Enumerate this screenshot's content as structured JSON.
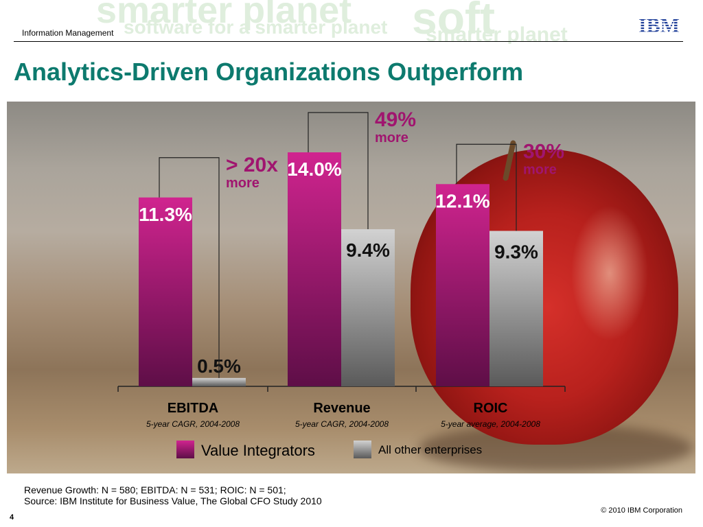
{
  "header": {
    "label": "Information Management",
    "watermark": [
      "smarter planet",
      "software for a smarter planet",
      "soft",
      "smarter planet"
    ]
  },
  "logo": {
    "text": "IBM",
    "color": "#1f3f99"
  },
  "title": "Analytics-Driven Organizations Outperform",
  "chart_data": {
    "type": "bar",
    "categories": [
      "EBITDA",
      "Revenue",
      "ROIC"
    ],
    "category_subtitles": [
      "5-year CAGR, 2004-2008",
      "5-year CAGR, 2004-2008",
      "5-year average, 2004-2008"
    ],
    "series": [
      {
        "name": "Value Integrators",
        "values": [
          11.3,
          14.0,
          12.1
        ],
        "labels": [
          "11.3%",
          "14.0%",
          "12.1%"
        ],
        "color": "#c0288f"
      },
      {
        "name": "All other enterprises",
        "values": [
          0.5,
          9.4,
          9.3
        ],
        "labels": [
          "0.5%",
          "9.4%",
          "9.3%"
        ],
        "color": "#a8a8a8"
      }
    ],
    "comparisons": [
      {
        "big": "> 20x",
        "small": "more"
      },
      {
        "big": "49%",
        "small": "more"
      },
      {
        "big": "30%",
        "small": "more"
      }
    ],
    "ylim": [
      0,
      14.0
    ],
    "xlabel": "",
    "ylabel": "",
    "grid": false,
    "legend_position": "bottom"
  },
  "colors": {
    "title": "#0d7a6e",
    "accent": "#a0156f"
  },
  "footnote": {
    "line1": "Revenue Growth: N = 580; EBITDA: N = 531; ROIC: N = 501;",
    "line2": "Source: IBM Institute for Business Value, The Global CFO Study 2010"
  },
  "copyright": "© 2010 IBM Corporation",
  "page_number": "4"
}
